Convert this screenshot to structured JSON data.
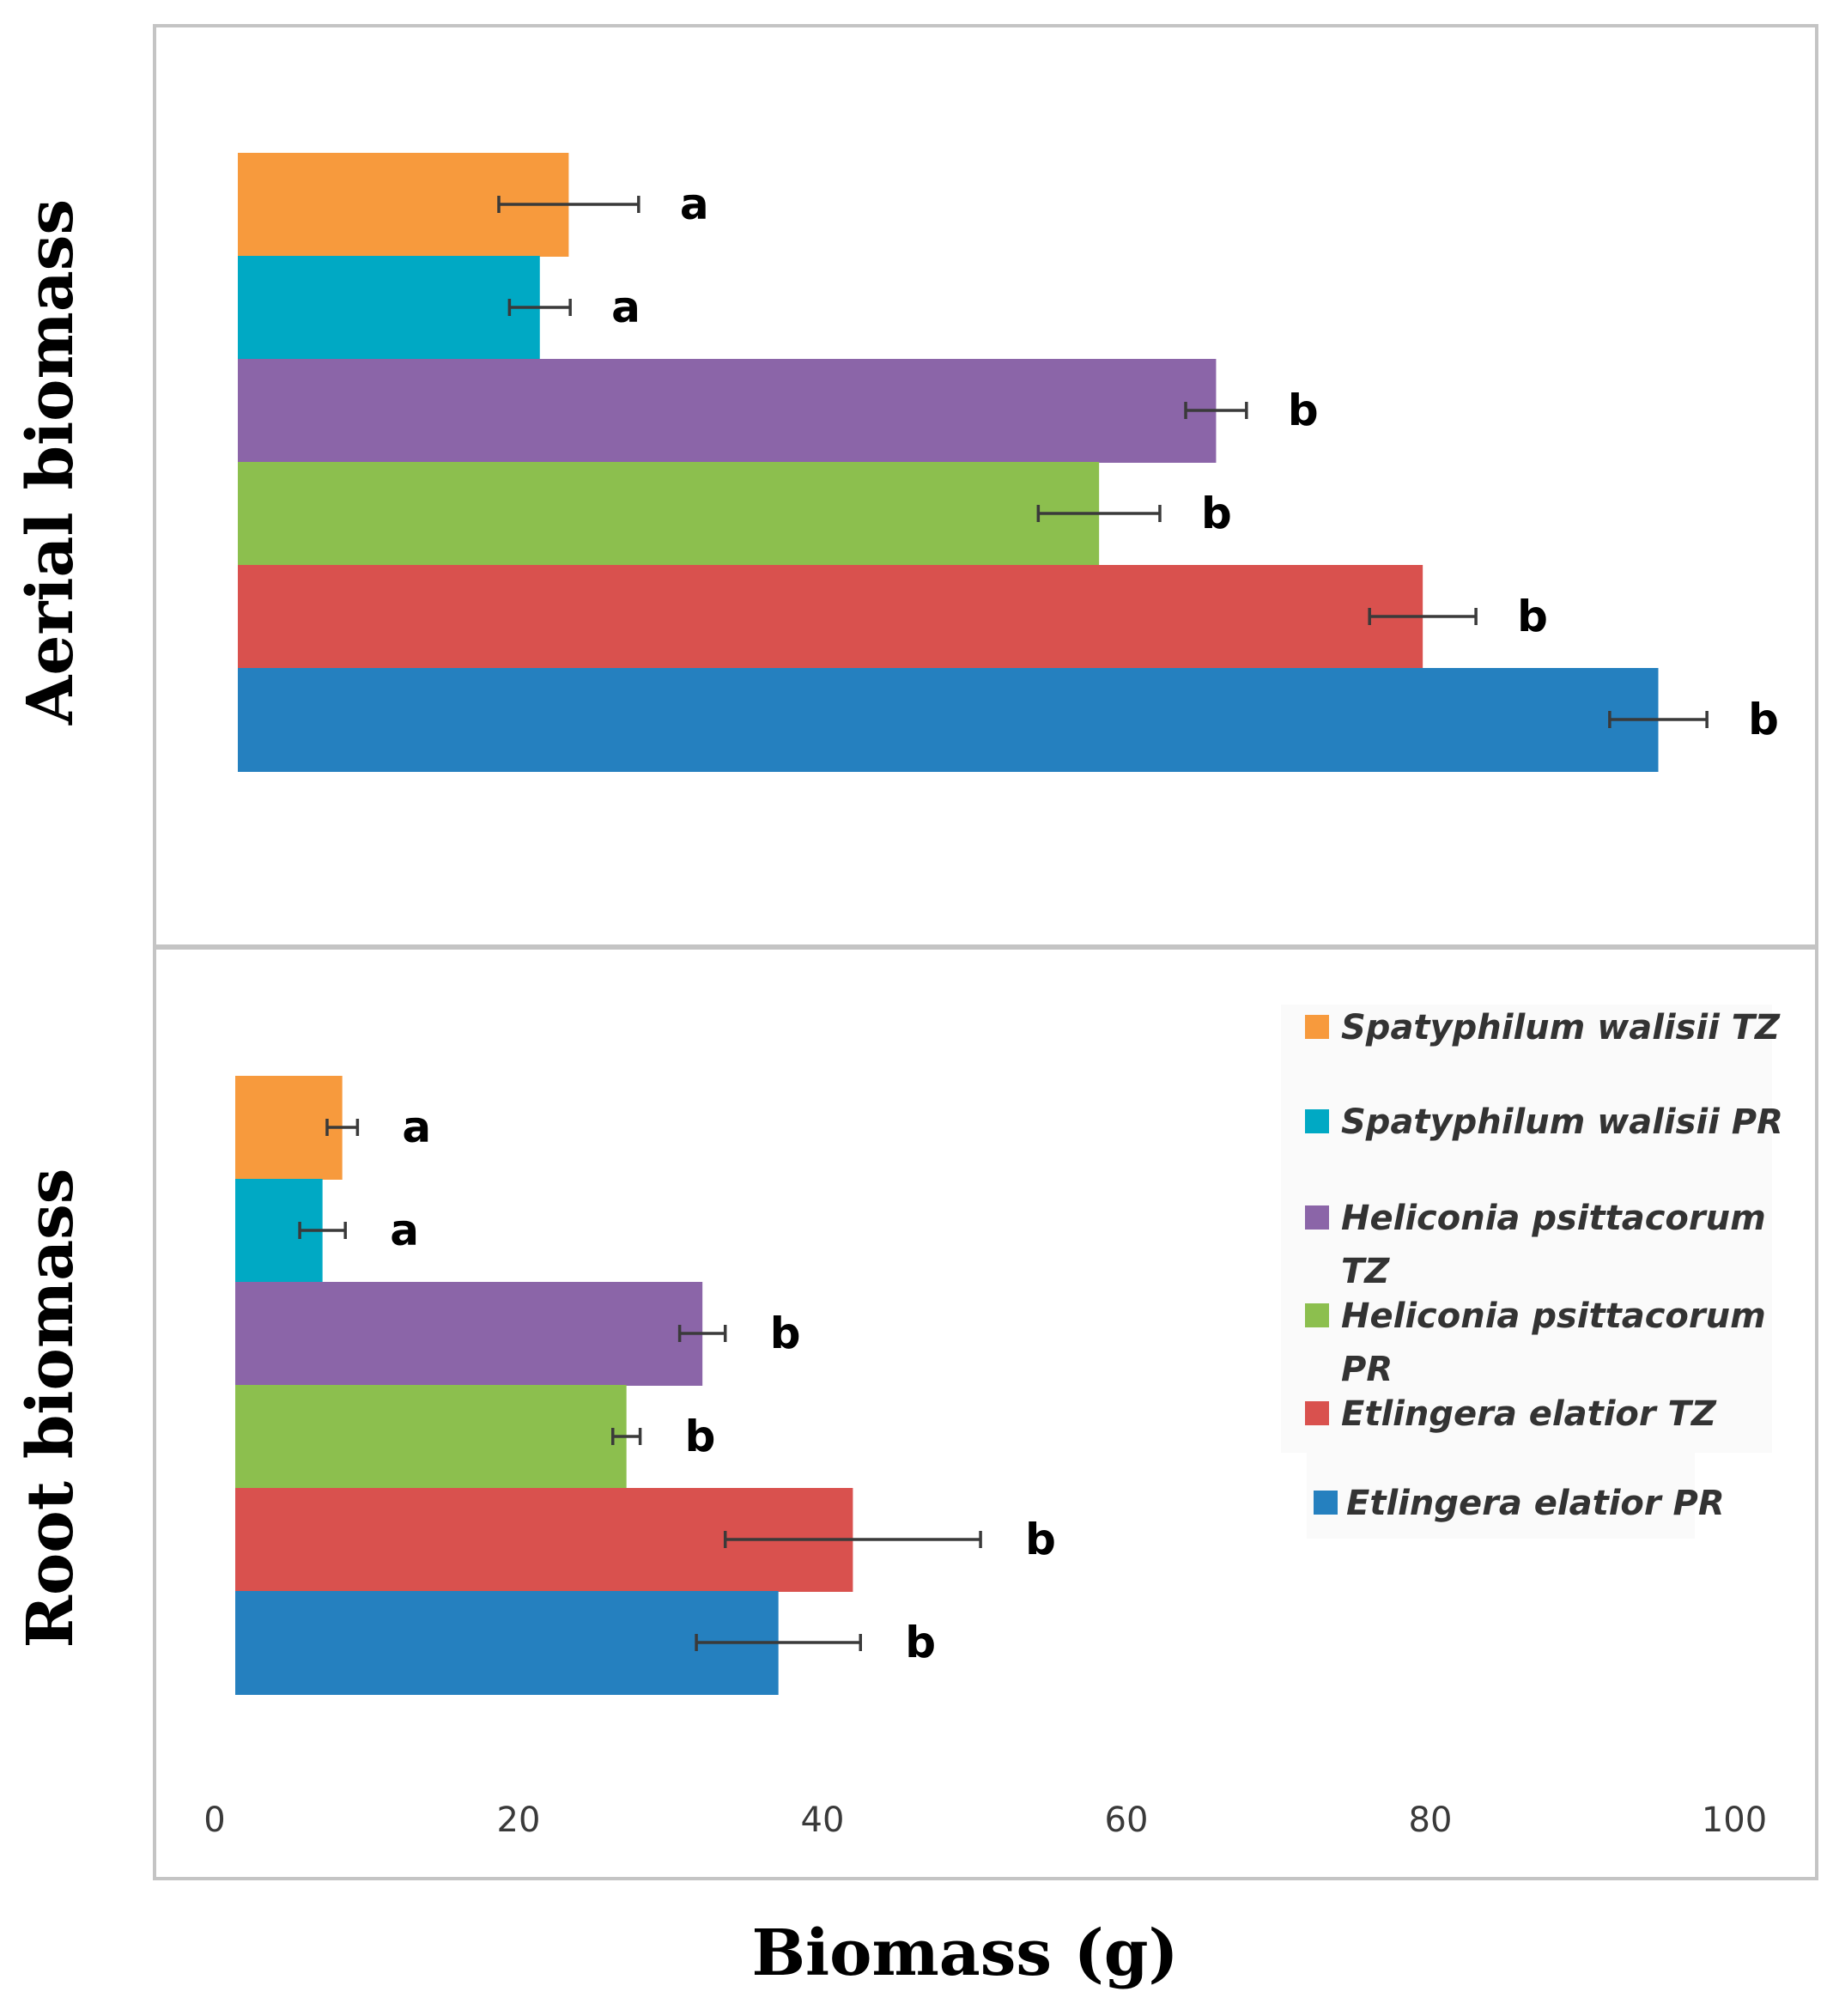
{
  "chart_data": {
    "type": "bar",
    "orientation": "horizontal",
    "xlabel": "Biomass (g)",
    "xlim": [
      0,
      100
    ],
    "x_ticks": [
      "0",
      "20",
      "40",
      "60",
      "80",
      "100"
    ],
    "series_colors": [
      "#f79a3d",
      "#00a9c4",
      "#8b65a8",
      "#8cbf4e",
      "#d9514e",
      "#2580bf"
    ],
    "legend": [
      "Spatyphilum walisii TZ",
      "Spatyphilum walisii PR",
      "Heliconia psittacorum TZ",
      "Heliconia psittacorum PR",
      "Etlingera elatior TZ",
      "Etlingera elatior PR"
    ],
    "legend_position": "right of lower panel",
    "panels": [
      {
        "title": "Aerial biomass",
        "values": [
          23.3,
          21.4,
          65.9,
          58.2,
          79.5,
          95.0
        ],
        "errors": [
          4.6,
          2.0,
          2.0,
          4.0,
          3.5,
          3.2
        ],
        "labels": [
          "a",
          "a",
          "b",
          "b",
          "b",
          "b"
        ]
      },
      {
        "title": "Root biomass",
        "values": [
          8.4,
          7.1,
          32.1,
          27.1,
          42.0,
          37.1
        ],
        "errors": [
          1.0,
          1.5,
          1.5,
          0.9,
          8.4,
          5.4
        ],
        "labels": [
          "a",
          "a",
          "b",
          "b",
          "b",
          "b"
        ]
      }
    ]
  }
}
